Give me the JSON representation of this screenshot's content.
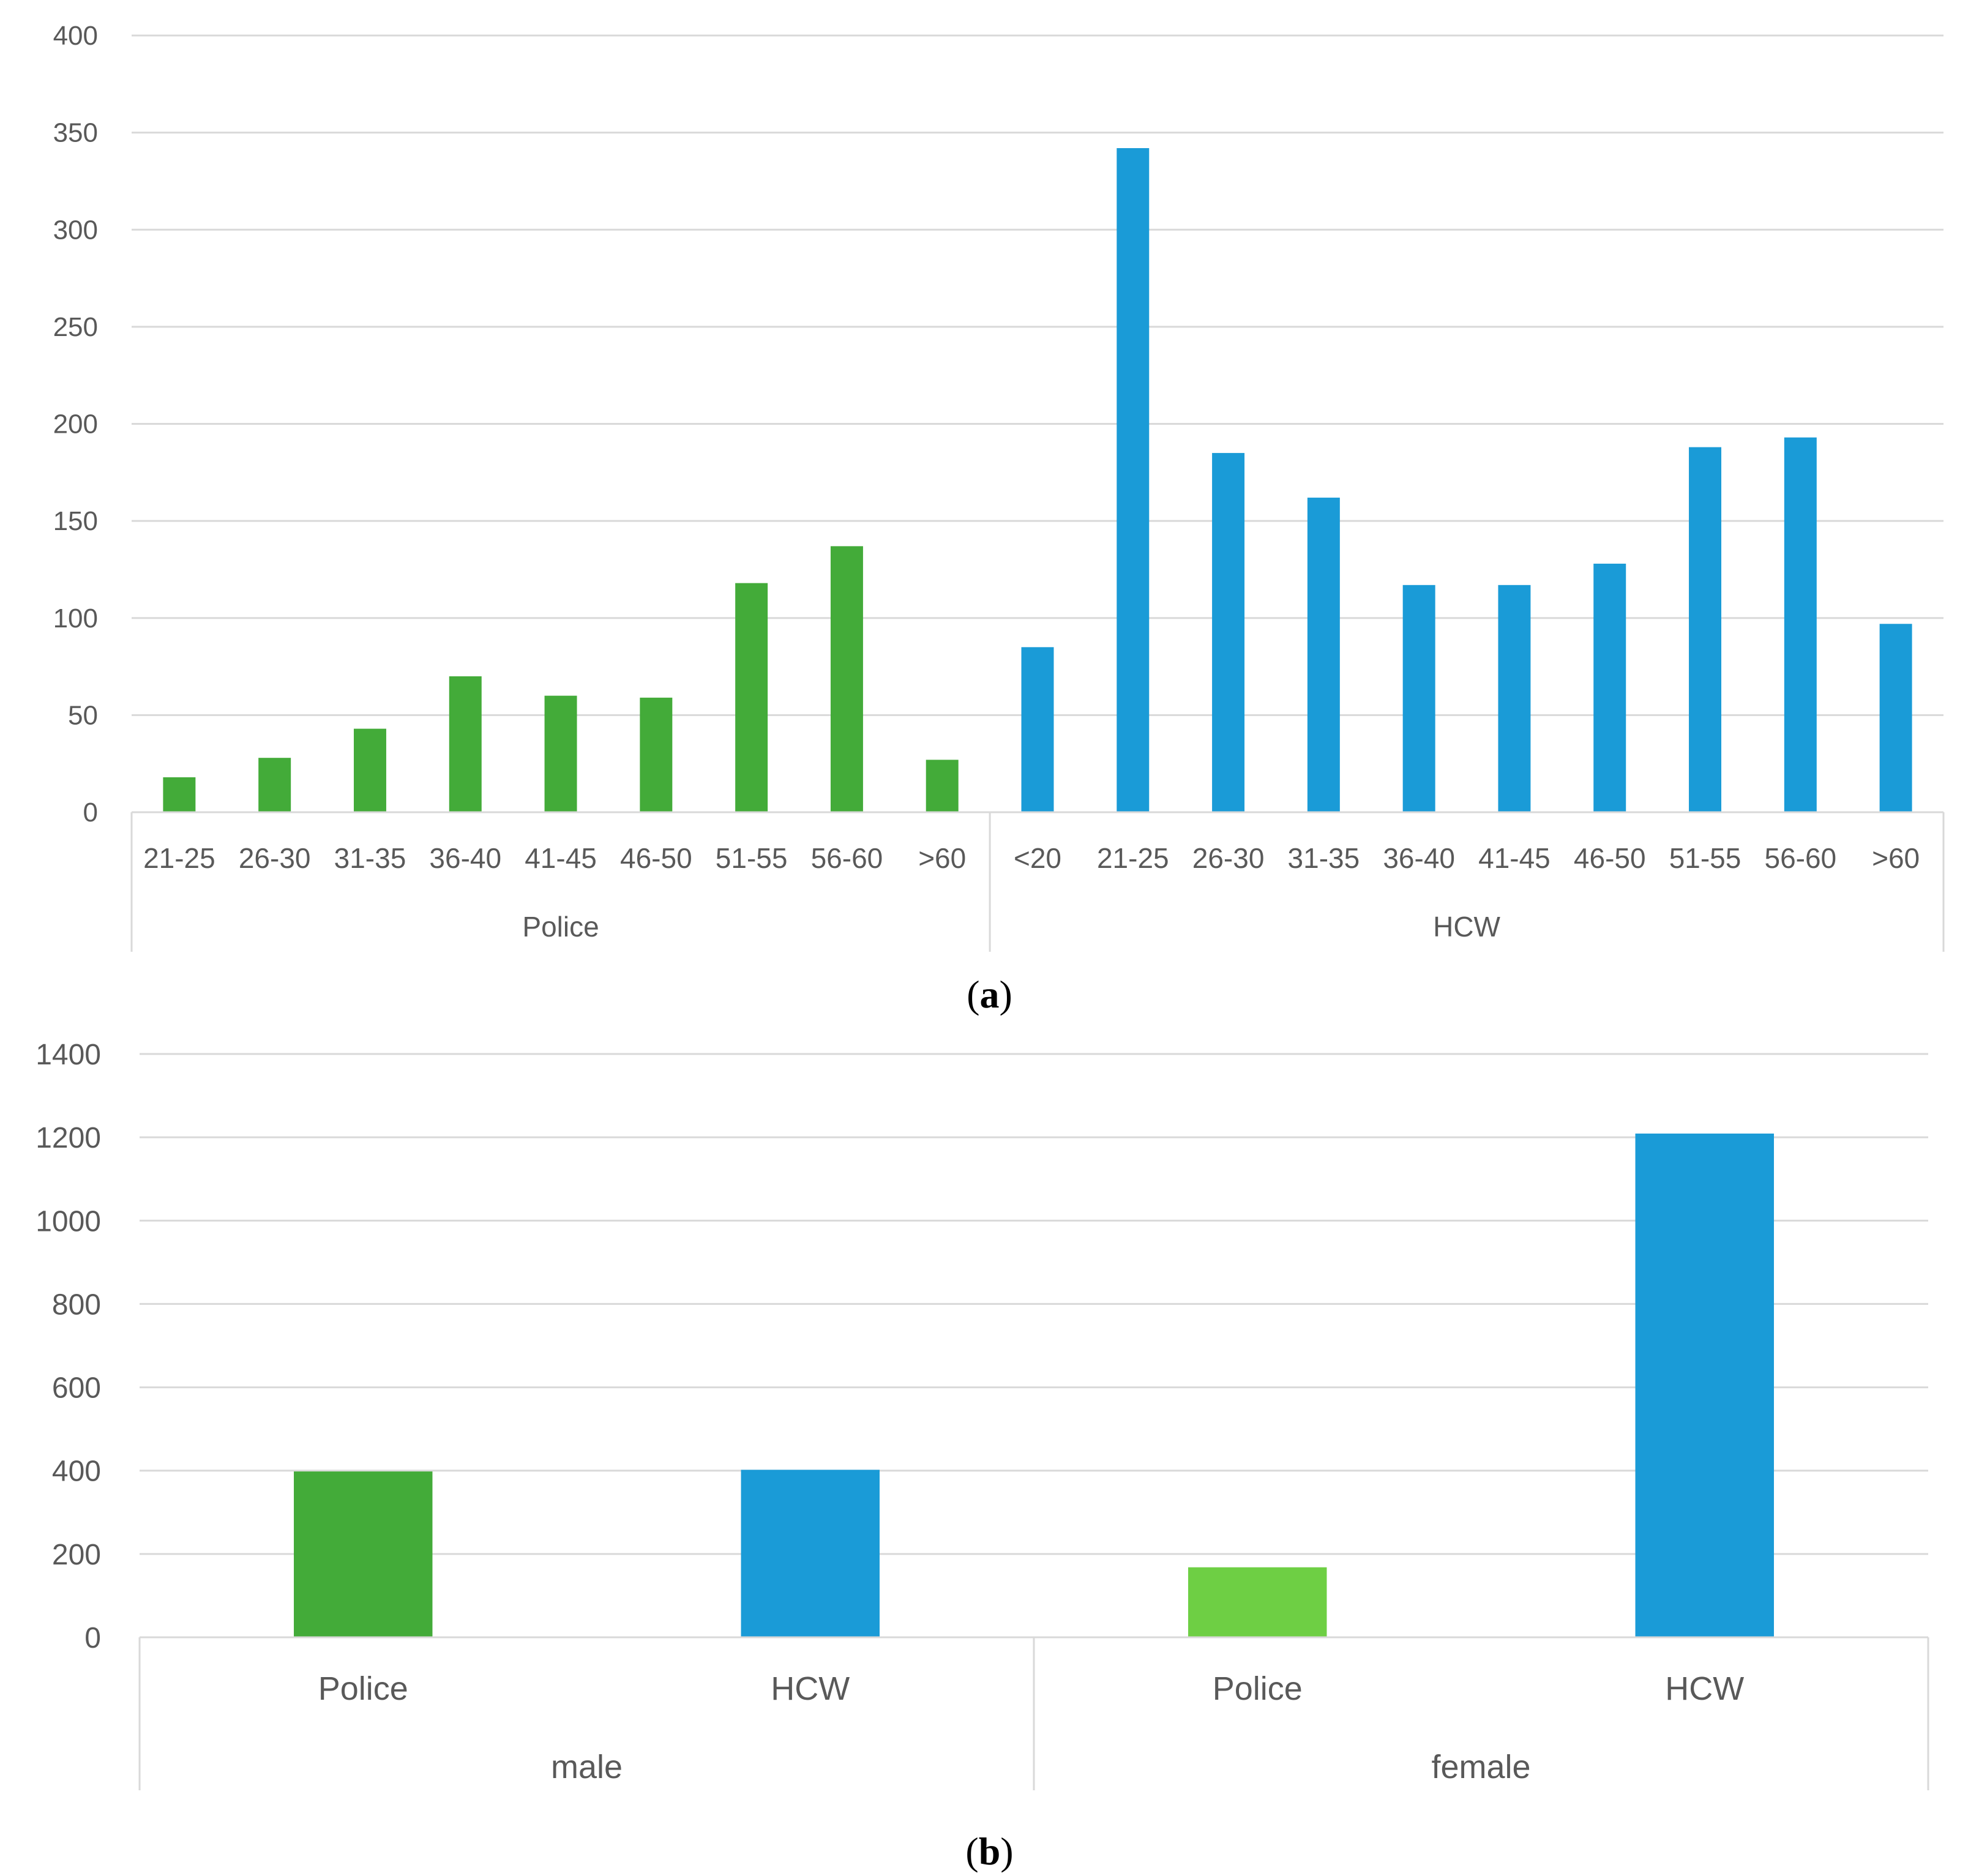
{
  "chart_data": [
    {
      "type": "bar",
      "panel_label": "a",
      "ylim": [
        0,
        400
      ],
      "yticks": [
        0,
        50,
        100,
        150,
        200,
        250,
        300,
        350,
        400
      ],
      "gridlines": true,
      "groups": [
        {
          "name": "Police",
          "color": "#43ab39",
          "categories": [
            "21-25",
            "26-30",
            "31-35",
            "36-40",
            "41-45",
            "46-50",
            "51-55",
            "56-60",
            ">60"
          ],
          "values": [
            18,
            28,
            43,
            70,
            60,
            59,
            118,
            137,
            27
          ]
        },
        {
          "name": "HCW",
          "color": "#1a9bd7",
          "categories": [
            "<20",
            "21-25",
            "26-30",
            "31-35",
            "36-40",
            "41-45",
            "46-50",
            "51-55",
            "56-60",
            ">60"
          ],
          "values": [
            85,
            342,
            185,
            162,
            117,
            117,
            128,
            188,
            193,
            97
          ]
        }
      ]
    },
    {
      "type": "bar",
      "panel_label": "b",
      "ylim": [
        0,
        1400
      ],
      "yticks": [
        0,
        200,
        400,
        600,
        800,
        1000,
        1200,
        1400
      ],
      "gridlines": true,
      "groups": [
        {
          "name": "male",
          "categories": [
            "Police",
            "HCW"
          ],
          "values": [
            398,
            402
          ],
          "colors": [
            "#43ab39",
            "#1a9bd7"
          ]
        },
        {
          "name": "female",
          "categories": [
            "Police",
            "HCW"
          ],
          "values": [
            168,
            1209
          ],
          "colors": [
            "#6ecf44",
            "#1a9bd7"
          ]
        }
      ]
    }
  ]
}
